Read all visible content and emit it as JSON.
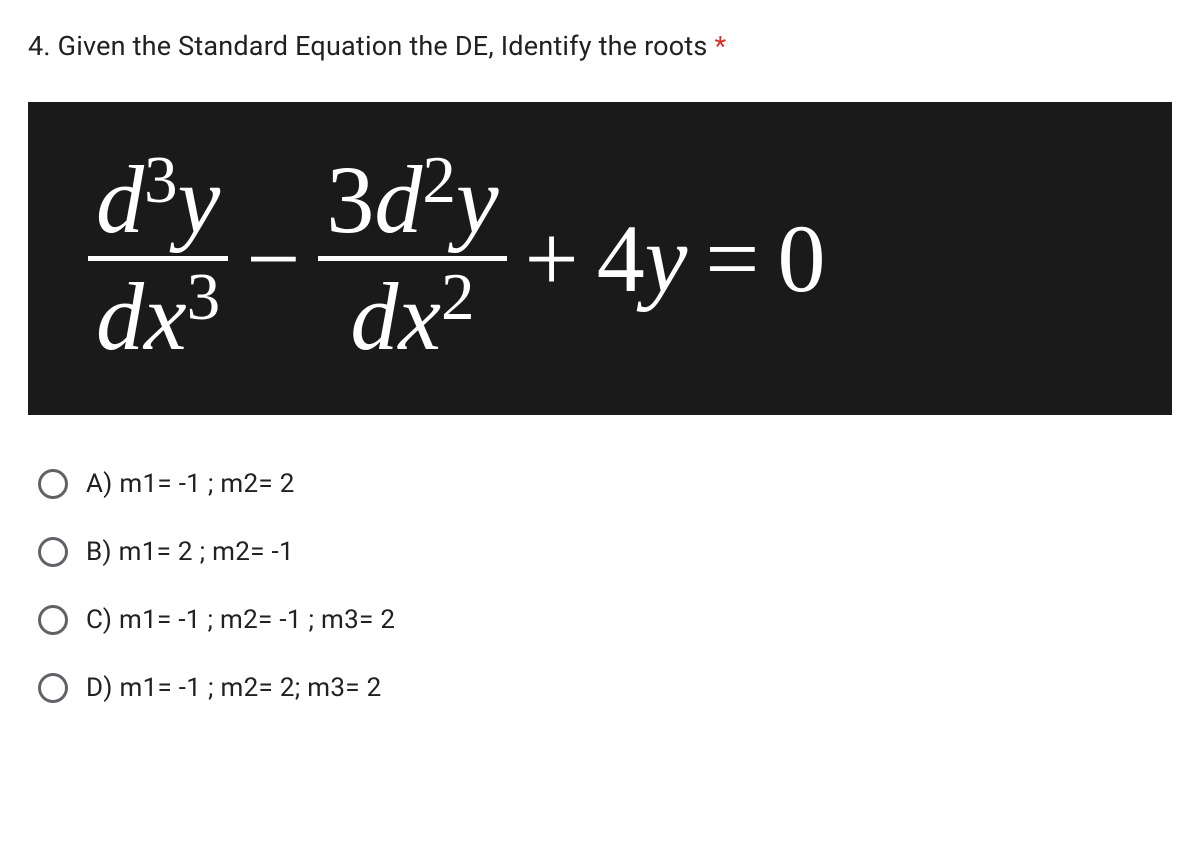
{
  "question": {
    "number": "4.",
    "text": "Given the Standard Equation the DE, Identify the roots",
    "required_marker": "*"
  },
  "equation": {
    "frac1_numerator_base1": "d",
    "frac1_numerator_sup1": "3",
    "frac1_numerator_base2": "y",
    "frac1_denominator_base1": "dx",
    "frac1_denominator_sup1": "3",
    "minus": "−",
    "frac2_numerator_coef": "3",
    "frac2_numerator_base1": "d",
    "frac2_numerator_sup1": "2",
    "frac2_numerator_base2": "y",
    "frac2_denominator_base1": "dx",
    "frac2_denominator_sup1": "2",
    "plus": "+",
    "term_coef": "4",
    "term_var": "y",
    "equals": "=",
    "rhs": "0",
    "background_color": "#1a1a1a",
    "text_color": "#ffffff"
  },
  "options": [
    {
      "label": "A) m1= -1 ; m2= 2"
    },
    {
      "label": "B) m1= 2 ; m2= -1"
    },
    {
      "label": "C) m1= -1 ; m2= -1 ; m3= 2"
    },
    {
      "label": "D) m1= -1 ; m2= 2; m3= 2"
    }
  ],
  "colors": {
    "question_text": "#202124",
    "required_asterisk": "#d93025",
    "radio_border": "#5f6368",
    "option_text": "#202124",
    "page_background": "#ffffff"
  }
}
